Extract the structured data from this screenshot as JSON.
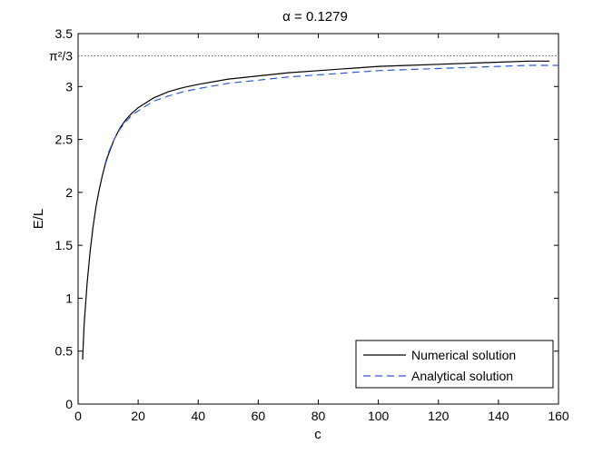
{
  "chart_data": {
    "type": "line",
    "title": "α = 0.1279",
    "xlabel": "c",
    "ylabel": "E/L",
    "xlim": [
      0,
      160
    ],
    "ylim": [
      0,
      3.5
    ],
    "xticks": [
      0,
      20,
      40,
      60,
      80,
      100,
      120,
      140,
      160
    ],
    "yticks": [
      0,
      0.5,
      1,
      1.5,
      2,
      2.5,
      3,
      3.5
    ],
    "reference_line": {
      "y": 3.2899,
      "label": "π²/3",
      "style": "dotted",
      "color": "#666666"
    },
    "grid": false,
    "legend_position": "bottom-right",
    "series": [
      {
        "name": "Numerical solution",
        "style": "solid",
        "color": "#000000",
        "x": [
          1.5,
          2,
          3,
          4,
          5,
          6,
          7,
          8,
          9,
          10,
          12,
          14,
          16,
          18,
          20,
          25,
          30,
          35,
          40,
          50,
          60,
          70,
          80,
          90,
          100,
          110,
          120,
          130,
          140,
          150,
          157
        ],
        "y": [
          0.42,
          0.75,
          1.14,
          1.44,
          1.68,
          1.87,
          2.02,
          2.15,
          2.26,
          2.35,
          2.5,
          2.61,
          2.69,
          2.75,
          2.8,
          2.89,
          2.95,
          2.99,
          3.02,
          3.07,
          3.1,
          3.13,
          3.15,
          3.17,
          3.19,
          3.2,
          3.21,
          3.22,
          3.23,
          3.24,
          3.24
        ]
      },
      {
        "name": "Analytical solution",
        "style": "dashed",
        "color": "#2a5bd7",
        "x": [
          9,
          10,
          12,
          14,
          16,
          18,
          20,
          25,
          30,
          35,
          40,
          50,
          60,
          70,
          80,
          90,
          100,
          110,
          120,
          130,
          140,
          150,
          160
        ],
        "y": [
          2.27,
          2.37,
          2.5,
          2.6,
          2.67,
          2.73,
          2.77,
          2.86,
          2.91,
          2.95,
          2.98,
          3.03,
          3.06,
          3.09,
          3.11,
          3.13,
          3.15,
          3.16,
          3.17,
          3.18,
          3.19,
          3.2,
          3.2
        ]
      }
    ]
  }
}
